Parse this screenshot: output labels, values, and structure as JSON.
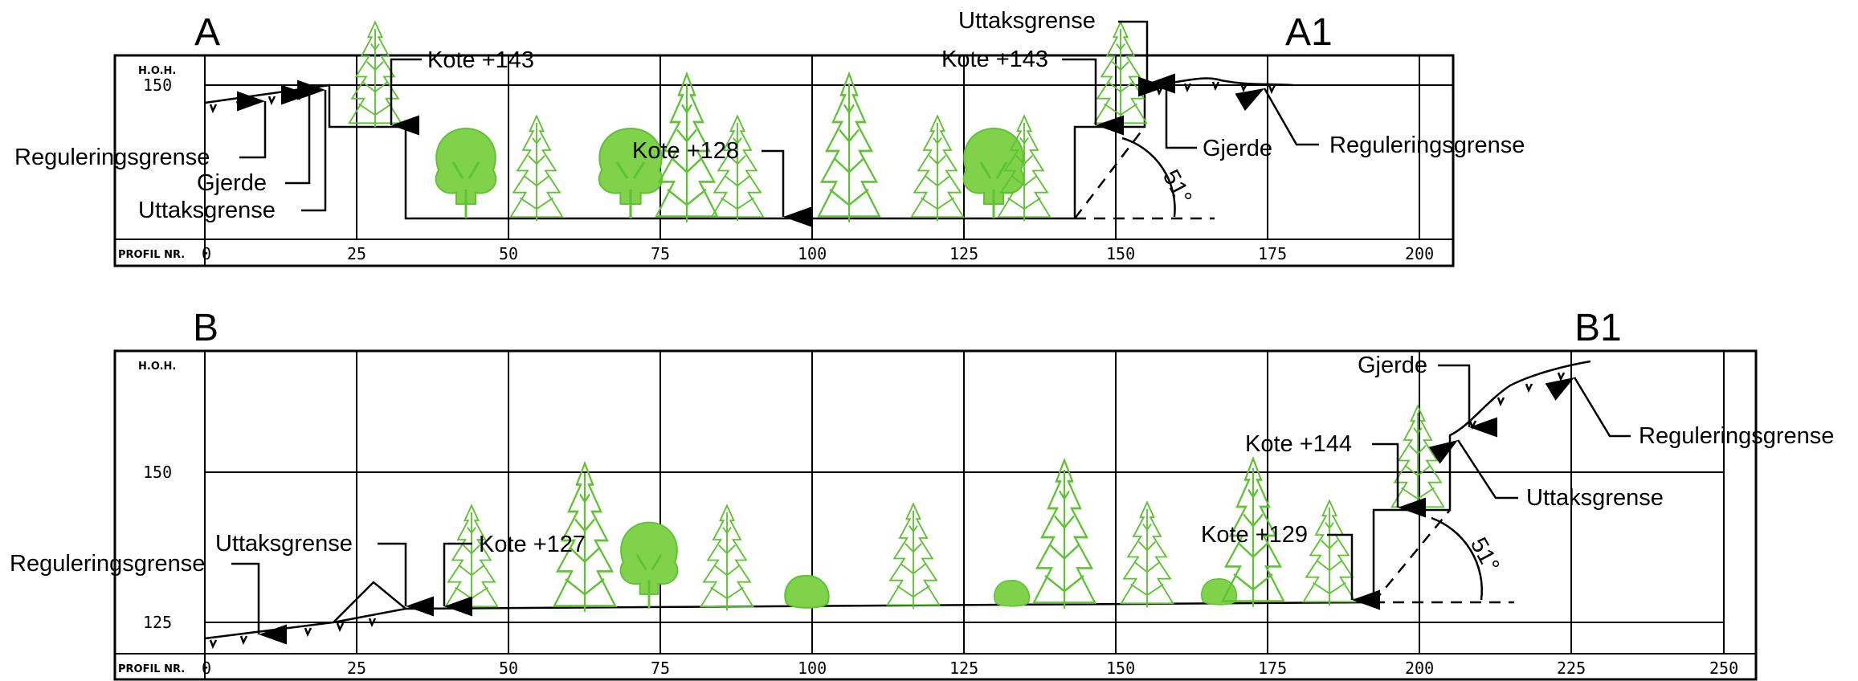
{
  "sectionA": {
    "start_label": "A",
    "end_label": "A1",
    "hoh_label": "H.O.H.",
    "profil_label": "PROFIL NR.",
    "y_ticks": [
      "150"
    ],
    "x_ticks": [
      "0",
      "25",
      "50",
      "75",
      "100",
      "125",
      "150",
      "175",
      "200"
    ],
    "annotations": {
      "reguleringsgrense_left": "Reguleringsgrense",
      "gjerde_left": "Gjerde",
      "uttaksgrense_left": "Uttaksgrense",
      "kote_left": "Kote +143",
      "kote_bottom": "Kote +128",
      "kote_right": "Kote +143",
      "uttaksgrense_right": "Uttaksgrense",
      "gjerde_right": "Gjerde",
      "reguleringsgrense_right": "Reguleringsgrense",
      "angle": "51°"
    }
  },
  "sectionB": {
    "start_label": "B",
    "end_label": "B1",
    "hoh_label": "H.O.H.",
    "profil_label": "PROFIL NR.",
    "y_ticks": [
      "150",
      "125"
    ],
    "x_ticks": [
      "0",
      "25",
      "50",
      "75",
      "100",
      "125",
      "150",
      "175",
      "200",
      "225",
      "250"
    ],
    "annotations": {
      "reguleringsgrense_left": "Reguleringsgrense",
      "uttaksgrense_left": "Uttaksgrense",
      "kote_left": "Kote +127",
      "kote_bottom_right": "Kote +129",
      "kote_top": "Kote +144",
      "gjerde_right": "Gjerde",
      "reguleringsgrense_right": "Reguleringsgrense",
      "uttaksgrense_right": "Uttaksgrense",
      "angle": "51°"
    }
  }
}
